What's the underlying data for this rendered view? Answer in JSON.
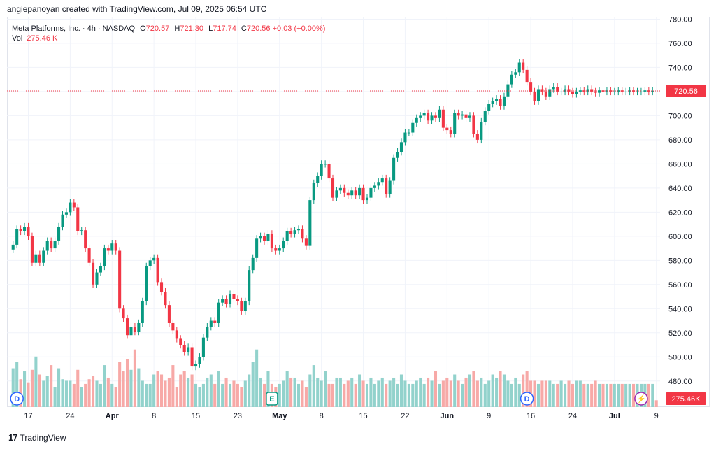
{
  "credit": "angiepanoyan created with TradingView.com, Jul 09, 2025 06:54 UTC",
  "legend": {
    "symbol": "Meta Platforms, Inc. · 4h · NASDAQ",
    "o_label": "O",
    "o_value": "720.57",
    "h_label": "H",
    "h_value": "721.30",
    "l_label": "L",
    "l_value": "717.74",
    "c_label": "C",
    "c_value": "720.56",
    "change": "+0.03 (+0.00%)",
    "vol_label": "Vol",
    "vol_value": "275.46 K"
  },
  "footer": {
    "brand": "TradingView",
    "brand_mark": "17"
  },
  "colors": {
    "up": "#089981",
    "down": "#f23645",
    "vol_up": "#92d2cc",
    "vol_down": "#f7a9a7",
    "grid": "#f0f3fa"
  },
  "chart_data": {
    "type": "candlestick",
    "title": "Meta Platforms, Inc. · 4h · NASDAQ",
    "y_ticks": [
      "780.00",
      "760.00",
      "740.00",
      "720.00",
      "700.00",
      "680.00",
      "660.00",
      "640.00",
      "620.00",
      "600.00",
      "580.00",
      "560.00",
      "540.00",
      "520.00",
      "500.00",
      "480.00"
    ],
    "ylim": [
      470,
      782
    ],
    "x_ticks": [
      "17",
      "24",
      "Apr",
      "8",
      "15",
      "23",
      "May",
      "8",
      "15",
      "22",
      "Jun",
      "9",
      "16",
      "24",
      "Jul",
      "9"
    ],
    "x_tick_index": [
      4,
      15,
      26,
      37,
      48,
      59,
      70,
      81,
      92,
      103,
      114,
      125,
      136,
      147,
      158,
      169
    ],
    "last_price_label": "720.56",
    "last_volume_label": "275.46K",
    "last_price": 720.56,
    "markers": [
      {
        "label": "D",
        "index": 1,
        "kind": "dividend"
      },
      {
        "label": "E",
        "index": 68,
        "kind": "earnings"
      },
      {
        "label": "D",
        "index": 135,
        "kind": "dividend"
      },
      {
        "label": "⚡",
        "index": 165,
        "kind": "split"
      }
    ],
    "close": [
      593,
      606,
      604,
      608,
      600,
      578,
      585,
      578,
      588,
      596,
      590,
      596,
      608,
      618,
      620,
      628,
      624,
      604,
      605,
      590,
      578,
      560,
      570,
      575,
      590,
      588,
      594,
      588,
      540,
      532,
      518,
      525,
      521,
      528,
      546,
      575,
      580,
      582,
      562,
      554,
      543,
      528,
      522,
      515,
      510,
      504,
      508,
      492,
      494,
      500,
      516,
      525,
      530,
      528,
      545,
      548,
      544,
      552,
      548,
      546,
      538,
      546,
      572,
      582,
      598,
      600,
      596,
      602,
      590,
      588,
      590,
      596,
      604,
      602,
      605,
      606,
      598,
      592,
      630,
      644,
      650,
      660,
      660,
      648,
      632,
      638,
      640,
      636,
      634,
      638,
      634,
      640,
      630,
      632,
      640,
      642,
      645,
      648,
      635,
      646,
      665,
      670,
      678,
      686,
      686,
      694,
      698,
      700,
      702,
      696,
      700,
      698,
      705,
      690,
      688,
      685,
      702,
      700,
      701,
      698,
      700,
      685,
      680,
      695,
      704,
      710,
      712,
      714,
      708,
      716,
      726,
      734,
      736,
      744,
      738,
      728,
      720,
      712,
      722,
      720,
      716,
      722,
      724,
      720,
      720,
      722,
      720,
      718,
      720,
      721,
      720,
      722,
      720,
      719,
      721,
      720,
      721,
      720,
      720,
      721,
      720,
      720,
      721,
      720,
      720,
      720,
      721,
      720,
      720.56
    ],
    "volume_k": [
      480,
      520,
      410,
      460,
      390,
      470,
      555,
      440,
      400,
      430,
      500,
      360,
      480,
      410,
      400,
      400,
      380,
      470,
      360,
      380,
      410,
      430,
      400,
      380,
      500,
      420,
      380,
      360,
      520,
      460,
      540,
      470,
      600,
      480,
      400,
      380,
      380,
      440,
      460,
      440,
      400,
      420,
      500,
      360,
      440,
      460,
      420,
      440,
      380,
      360,
      380,
      420,
      440,
      380,
      460,
      380,
      420,
      380,
      400,
      380,
      360,
      400,
      440,
      520,
      600,
      420,
      380,
      460,
      380,
      360,
      380,
      400,
      460,
      420,
      420,
      380,
      400,
      360,
      440,
      500,
      420,
      400,
      460,
      380,
      380,
      420,
      420,
      380,
      400,
      420,
      380,
      440,
      400,
      380,
      420,
      380,
      400,
      420,
      380,
      400,
      420,
      380,
      440,
      400,
      380,
      380,
      400,
      420,
      380,
      420,
      400,
      460,
      380,
      400,
      420,
      400,
      440,
      400,
      380,
      420,
      440,
      460,
      400,
      420,
      380,
      400,
      440,
      420,
      460,
      440,
      400,
      380,
      420,
      380,
      440,
      460,
      400,
      400,
      380,
      400,
      400,
      400,
      380,
      380,
      400,
      380,
      400,
      380,
      400,
      400,
      380,
      380,
      380,
      400,
      380,
      380,
      380,
      380,
      380,
      380,
      380,
      380,
      380,
      380,
      380,
      380,
      380,
      380,
      380,
      275.46
    ]
  }
}
